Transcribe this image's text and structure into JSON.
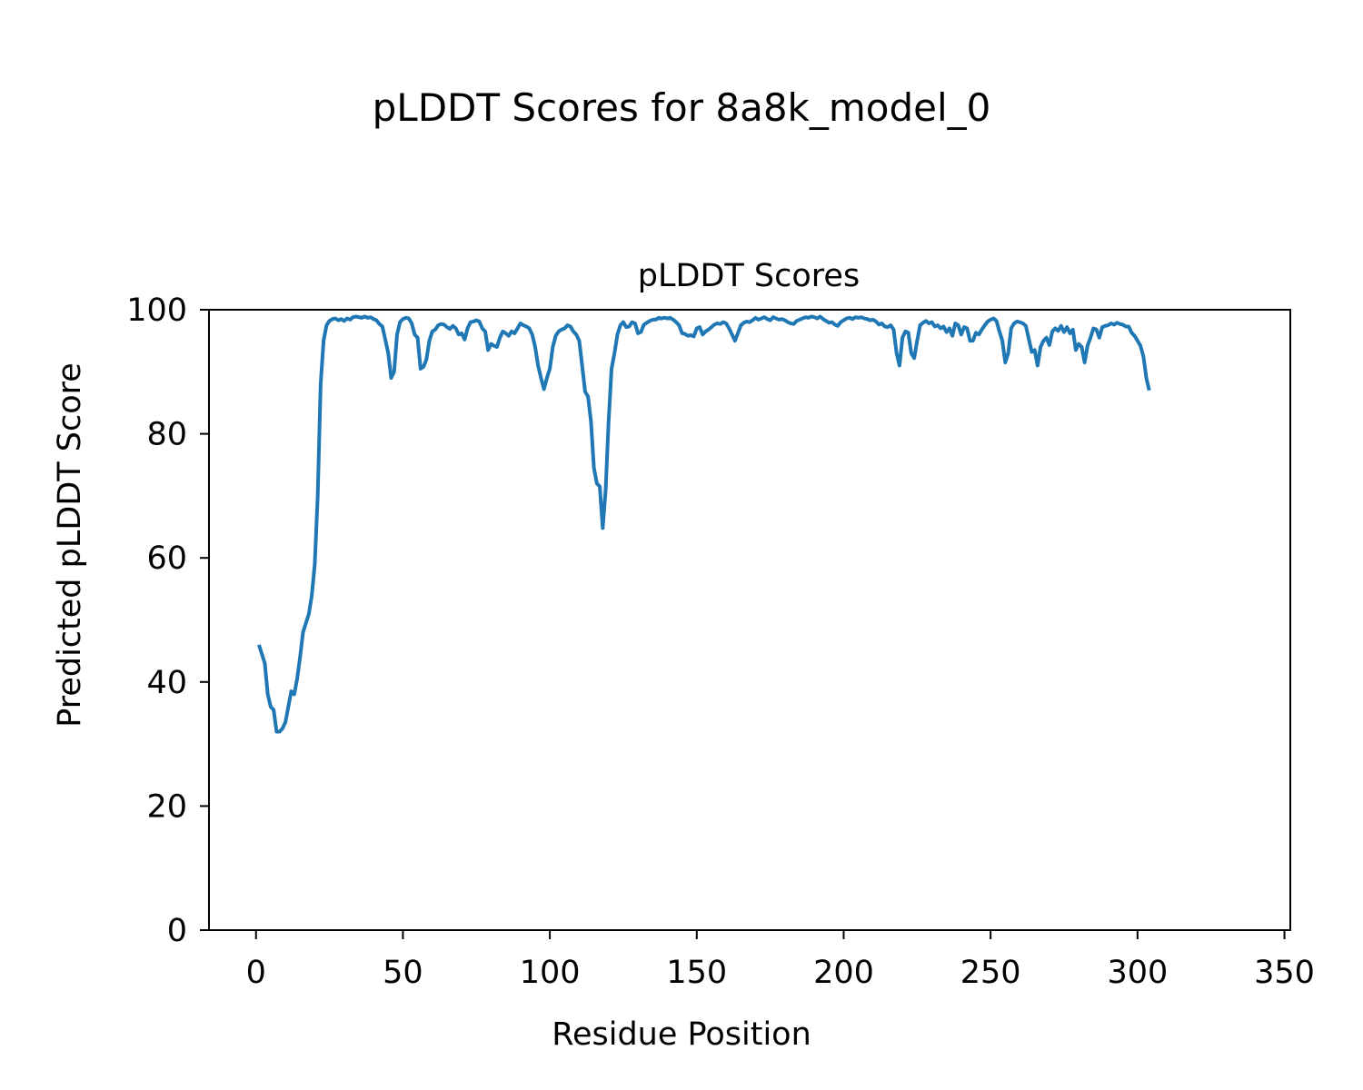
{
  "figure": {
    "suptitle": "pLDDT Scores for 8a8k_model_0"
  },
  "chart_data": {
    "type": "line",
    "title": "pLDDT Scores",
    "xlabel": "Residue Position",
    "ylabel": "Predicted pLDDT Score",
    "xlim": [
      -16,
      352
    ],
    "ylim": [
      0,
      100
    ],
    "xticks": [
      0,
      50,
      100,
      150,
      200,
      250,
      300,
      350
    ],
    "yticks": [
      0,
      20,
      40,
      60,
      80,
      100
    ],
    "grid": false,
    "legend": "none",
    "series": [
      {
        "color": "#1f77b4",
        "points": [
          [
            1,
            46
          ],
          [
            3,
            43
          ],
          [
            4,
            38
          ],
          [
            5,
            36
          ],
          [
            6,
            35.5
          ],
          [
            7,
            32
          ],
          [
            8,
            32
          ],
          [
            9,
            32.5
          ],
          [
            10,
            33.5
          ],
          [
            11,
            36
          ],
          [
            12,
            38.5
          ],
          [
            13,
            38
          ],
          [
            14,
            40.5
          ],
          [
            15,
            44
          ],
          [
            16,
            48
          ],
          [
            17,
            49.5
          ],
          [
            18,
            51
          ],
          [
            19,
            54
          ],
          [
            20,
            59
          ],
          [
            21,
            70
          ],
          [
            22,
            88
          ],
          [
            23,
            95
          ],
          [
            24,
            97.5
          ],
          [
            25,
            98.2
          ],
          [
            26,
            98.5
          ],
          [
            27,
            98.6
          ],
          [
            28,
            98.3
          ],
          [
            29,
            98.5
          ],
          [
            30,
            98.2
          ],
          [
            31,
            98.6
          ],
          [
            32,
            98.4
          ],
          [
            33,
            98.8
          ],
          [
            34,
            98.9
          ],
          [
            35,
            98.8
          ],
          [
            36,
            98.7
          ],
          [
            37,
            98.9
          ],
          [
            38,
            98.7
          ],
          [
            39,
            98.8
          ],
          [
            40,
            98.5
          ],
          [
            41,
            98.3
          ],
          [
            42,
            97.7
          ],
          [
            43,
            97.3
          ],
          [
            44,
            95.2
          ],
          [
            45,
            93
          ],
          [
            46,
            89
          ],
          [
            47,
            90
          ],
          [
            48,
            96
          ],
          [
            49,
            98
          ],
          [
            50,
            98.5
          ],
          [
            51,
            98.7
          ],
          [
            52,
            98.6
          ],
          [
            53,
            97.8
          ],
          [
            54,
            96
          ],
          [
            55,
            95.5
          ],
          [
            56,
            90.5
          ],
          [
            57,
            90.8
          ],
          [
            58,
            92
          ],
          [
            59,
            95
          ],
          [
            60,
            96.5
          ],
          [
            61,
            96.8
          ],
          [
            62,
            97.5
          ],
          [
            63,
            97.7
          ],
          [
            64,
            97.6
          ],
          [
            65,
            97.2
          ],
          [
            66,
            96.9
          ],
          [
            67,
            97.4
          ],
          [
            68,
            97
          ],
          [
            69,
            96
          ],
          [
            70,
            96.2
          ],
          [
            71,
            95.2
          ],
          [
            72,
            97
          ],
          [
            73,
            98
          ],
          [
            74,
            98.1
          ],
          [
            75,
            98.3
          ],
          [
            76,
            98.1
          ],
          [
            77,
            97
          ],
          [
            78,
            96.5
          ],
          [
            79,
            93.5
          ],
          [
            80,
            94.5
          ],
          [
            81,
            94.2
          ],
          [
            82,
            94
          ],
          [
            83,
            95.5
          ],
          [
            84,
            96.5
          ],
          [
            85,
            96.2
          ],
          [
            86,
            95.8
          ],
          [
            87,
            96.5
          ],
          [
            88,
            96.2
          ],
          [
            89,
            97
          ],
          [
            90,
            97.8
          ],
          [
            91,
            97.5
          ],
          [
            92,
            97.3
          ],
          [
            93,
            97
          ],
          [
            94,
            96
          ],
          [
            95,
            94
          ],
          [
            96,
            91
          ],
          [
            97,
            89
          ],
          [
            98,
            87.2
          ],
          [
            99,
            89
          ],
          [
            100,
            90.5
          ],
          [
            101,
            94
          ],
          [
            102,
            95.8
          ],
          [
            103,
            96.5
          ],
          [
            104,
            96.8
          ],
          [
            105,
            97
          ],
          [
            106,
            97.5
          ],
          [
            107,
            97.3
          ],
          [
            108,
            96.5
          ],
          [
            109,
            96
          ],
          [
            110,
            95
          ],
          [
            111,
            91
          ],
          [
            112,
            86.8
          ],
          [
            113,
            86
          ],
          [
            114,
            82
          ],
          [
            115,
            74.5
          ],
          [
            116,
            72
          ],
          [
            117,
            71.5
          ],
          [
            118,
            64.8
          ],
          [
            119,
            71
          ],
          [
            120,
            82
          ],
          [
            121,
            90.5
          ],
          [
            122,
            93
          ],
          [
            123,
            96
          ],
          [
            124,
            97.5
          ],
          [
            125,
            98
          ],
          [
            126,
            97.2
          ],
          [
            127,
            97.3
          ],
          [
            128,
            98
          ],
          [
            129,
            97.8
          ],
          [
            130,
            96.2
          ],
          [
            131,
            96.4
          ],
          [
            132,
            97.6
          ],
          [
            133,
            97.9
          ],
          [
            134,
            98.2
          ],
          [
            135,
            98.4
          ],
          [
            136,
            98.4
          ],
          [
            137,
            98.7
          ],
          [
            138,
            98.6
          ],
          [
            139,
            98.7
          ],
          [
            140,
            98.6
          ],
          [
            141,
            98.7
          ],
          [
            142,
            98.4
          ],
          [
            143,
            98
          ],
          [
            144,
            97.5
          ],
          [
            145,
            96.2
          ],
          [
            146,
            96.1
          ],
          [
            147,
            95.8
          ],
          [
            148,
            95.9
          ],
          [
            149,
            95.7
          ],
          [
            150,
            97
          ],
          [
            151,
            97.2
          ],
          [
            152,
            96
          ],
          [
            153,
            96.5
          ],
          [
            154,
            96.8
          ],
          [
            155,
            97.2
          ],
          [
            156,
            97.6
          ],
          [
            157,
            97.8
          ],
          [
            158,
            97.7
          ],
          [
            159,
            98
          ],
          [
            160,
            97.8
          ],
          [
            161,
            97
          ],
          [
            162,
            96
          ],
          [
            163,
            95
          ],
          [
            164,
            96.2
          ],
          [
            165,
            97.5
          ],
          [
            166,
            97.9
          ],
          [
            167,
            98.1
          ],
          [
            168,
            98
          ],
          [
            169,
            98.3
          ],
          [
            170,
            98.7
          ],
          [
            171,
            98.4
          ],
          [
            172,
            98.6
          ],
          [
            173,
            98.8
          ],
          [
            174,
            98.5
          ],
          [
            175,
            98.3
          ],
          [
            176,
            98.8
          ],
          [
            177,
            98.6
          ],
          [
            178,
            98.4
          ],
          [
            179,
            98.5
          ],
          [
            180,
            98.3
          ],
          [
            181,
            98
          ],
          [
            182,
            97.8
          ],
          [
            183,
            97.7
          ],
          [
            184,
            98.2
          ],
          [
            185,
            98.4
          ],
          [
            186,
            98.6
          ],
          [
            187,
            98.8
          ],
          [
            188,
            98.7
          ],
          [
            189,
            98.9
          ],
          [
            190,
            98.8
          ],
          [
            191,
            98.6
          ],
          [
            192,
            98.9
          ],
          [
            193,
            98.5
          ],
          [
            194,
            98.2
          ],
          [
            195,
            97.9
          ],
          [
            196,
            98
          ],
          [
            197,
            97.6
          ],
          [
            198,
            97.4
          ],
          [
            199,
            98
          ],
          [
            200,
            98.3
          ],
          [
            201,
            98.6
          ],
          [
            202,
            98.7
          ],
          [
            203,
            98.5
          ],
          [
            204,
            98.8
          ],
          [
            205,
            98.7
          ],
          [
            206,
            98.8
          ],
          [
            207,
            98.6
          ],
          [
            208,
            98.5
          ],
          [
            209,
            98.3
          ],
          [
            210,
            98.4
          ],
          [
            211,
            98.1
          ],
          [
            212,
            97.6
          ],
          [
            213,
            97.8
          ],
          [
            214,
            97.3
          ],
          [
            215,
            97.2
          ],
          [
            216,
            97.5
          ],
          [
            217,
            96.8
          ],
          [
            218,
            93
          ],
          [
            219,
            91
          ],
          [
            220,
            95.5
          ],
          [
            221,
            96.5
          ],
          [
            222,
            96.3
          ],
          [
            223,
            93
          ],
          [
            224,
            92.2
          ],
          [
            225,
            95
          ],
          [
            226,
            97.5
          ],
          [
            227,
            97.9
          ],
          [
            228,
            98.2
          ],
          [
            229,
            97.8
          ],
          [
            230,
            98
          ],
          [
            231,
            97.3
          ],
          [
            232,
            97.5
          ],
          [
            233,
            97
          ],
          [
            234,
            97.3
          ],
          [
            235,
            96.4
          ],
          [
            236,
            97
          ],
          [
            237,
            95.8
          ],
          [
            238,
            97.8
          ],
          [
            239,
            97.5
          ],
          [
            240,
            96
          ],
          [
            241,
            97.2
          ],
          [
            242,
            97
          ],
          [
            243,
            95
          ],
          [
            244,
            95
          ],
          [
            245,
            96.3
          ],
          [
            246,
            96
          ],
          [
            247,
            96.8
          ],
          [
            248,
            97.5
          ],
          [
            249,
            98.1
          ],
          [
            250,
            98.4
          ],
          [
            251,
            98.6
          ],
          [
            252,
            98.2
          ],
          [
            253,
            96.5
          ],
          [
            254,
            95
          ],
          [
            255,
            91.5
          ],
          [
            256,
            93
          ],
          [
            257,
            97
          ],
          [
            258,
            97.8
          ],
          [
            259,
            98.1
          ],
          [
            260,
            98
          ],
          [
            261,
            97.8
          ],
          [
            262,
            97.4
          ],
          [
            263,
            95.3
          ],
          [
            264,
            93.2
          ],
          [
            265,
            93.5
          ],
          [
            266,
            91
          ],
          [
            267,
            94
          ],
          [
            268,
            95
          ],
          [
            269,
            95.5
          ],
          [
            270,
            94.3
          ],
          [
            271,
            96.5
          ],
          [
            272,
            97
          ],
          [
            273,
            96.6
          ],
          [
            274,
            97.4
          ],
          [
            275,
            96.4
          ],
          [
            276,
            97.2
          ],
          [
            277,
            96.2
          ],
          [
            278,
            96.8
          ],
          [
            279,
            93.5
          ],
          [
            280,
            94.5
          ],
          [
            281,
            94
          ],
          [
            282,
            91.5
          ],
          [
            283,
            94.2
          ],
          [
            284,
            95.5
          ],
          [
            285,
            97
          ],
          [
            286,
            96.8
          ],
          [
            287,
            95.5
          ],
          [
            288,
            97.2
          ],
          [
            289,
            97.4
          ],
          [
            290,
            97.5
          ],
          [
            291,
            97.8
          ],
          [
            292,
            97.6
          ],
          [
            293,
            97.9
          ],
          [
            294,
            97.7
          ],
          [
            295,
            97.6
          ],
          [
            296,
            97.3
          ],
          [
            297,
            97.3
          ],
          [
            298,
            96.3
          ],
          [
            299,
            95.8
          ],
          [
            300,
            95
          ],
          [
            301,
            94.2
          ],
          [
            302,
            92.5
          ],
          [
            303,
            89
          ],
          [
            304,
            87
          ]
        ]
      }
    ]
  }
}
